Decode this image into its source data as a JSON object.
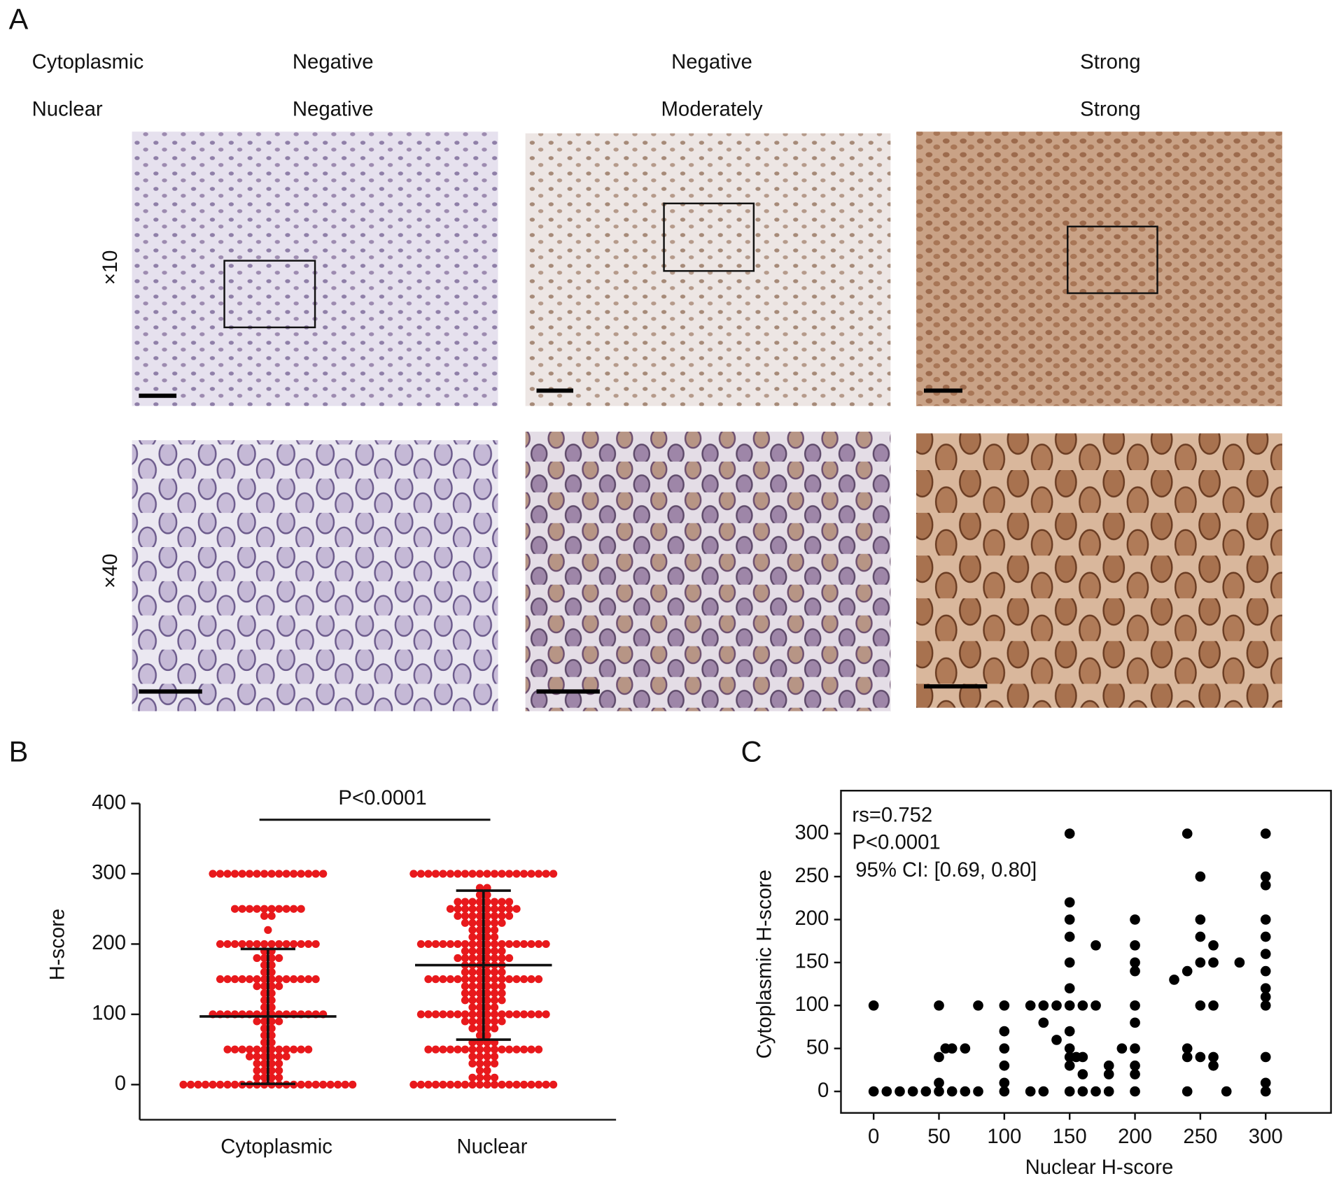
{
  "panel_a": {
    "label": "A",
    "row_labels": [
      "Cytoplasmic",
      "Nuclear"
    ],
    "columns": [
      {
        "cytoplasmic": "Negative",
        "nuclear": "Negative"
      },
      {
        "cytoplasmic": "Negative",
        "nuclear": "Moderately"
      },
      {
        "cytoplasmic": "Strong",
        "nuclear": "Strong"
      }
    ],
    "magnifications": [
      "×10",
      "×40"
    ]
  },
  "chart_data": [
    {
      "type": "strip",
      "label": "B",
      "annotation": "P<0.0001",
      "ylabel": "H-score",
      "categories": [
        "Cytoplasmic",
        "Nuclear"
      ],
      "color": "#e8191c",
      "values": [
        [
          0,
          0,
          0,
          0,
          0,
          0,
          0,
          0,
          0,
          0,
          0,
          0,
          0,
          0,
          0,
          0,
          0,
          0,
          0,
          0,
          0,
          0,
          0,
          0,
          10,
          10,
          10,
          10,
          20,
          20,
          20,
          20,
          30,
          30,
          30,
          30,
          40,
          40,
          40,
          40,
          40,
          40,
          50,
          50,
          50,
          50,
          50,
          50,
          50,
          50,
          50,
          50,
          50,
          50,
          60,
          60,
          70,
          70,
          80,
          80,
          90,
          90,
          90,
          90,
          100,
          100,
          100,
          100,
          100,
          100,
          100,
          100,
          100,
          100,
          100,
          100,
          100,
          100,
          100,
          100,
          110,
          110,
          120,
          120,
          130,
          130,
          140,
          140,
          140,
          140,
          150,
          150,
          150,
          150,
          150,
          150,
          150,
          150,
          150,
          150,
          150,
          150,
          150,
          150,
          160,
          160,
          170,
          170,
          180,
          180,
          180,
          180,
          190,
          190,
          200,
          200,
          200,
          200,
          200,
          200,
          200,
          200,
          200,
          200,
          200,
          200,
          200,
          200,
          220,
          240,
          240,
          250,
          250,
          250,
          250,
          250,
          250,
          250,
          250,
          250,
          250,
          300,
          300,
          300,
          300,
          300,
          300,
          300,
          300,
          300,
          300,
          300,
          300,
          300,
          300,
          300,
          300
        ],
        [
          0,
          0,
          0,
          0,
          0,
          0,
          0,
          0,
          0,
          0,
          0,
          0,
          0,
          0,
          0,
          0,
          0,
          0,
          0,
          0,
          10,
          10,
          10,
          10,
          20,
          20,
          30,
          30,
          30,
          30,
          40,
          40,
          40,
          40,
          50,
          50,
          50,
          50,
          50,
          50,
          50,
          50,
          50,
          50,
          50,
          50,
          50,
          50,
          50,
          50,
          60,
          60,
          60,
          60,
          70,
          70,
          80,
          80,
          80,
          80,
          90,
          90,
          90,
          90,
          90,
          90,
          100,
          100,
          100,
          100,
          100,
          100,
          100,
          100,
          100,
          100,
          100,
          100,
          100,
          100,
          100,
          100,
          100,
          100,
          110,
          110,
          110,
          110,
          120,
          120,
          120,
          120,
          120,
          120,
          130,
          130,
          130,
          130,
          130,
          130,
          140,
          140,
          140,
          140,
          140,
          140,
          150,
          150,
          150,
          150,
          150,
          150,
          150,
          150,
          150,
          150,
          150,
          150,
          150,
          150,
          150,
          150,
          160,
          160,
          160,
          160,
          160,
          160,
          170,
          170,
          170,
          170,
          170,
          170,
          180,
          180,
          180,
          180,
          180,
          180,
          180,
          180,
          190,
          190,
          190,
          190,
          190,
          190,
          200,
          200,
          200,
          200,
          200,
          200,
          200,
          200,
          200,
          200,
          200,
          200,
          200,
          200,
          200,
          200,
          200,
          200,
          210,
          210,
          210,
          210,
          220,
          220,
          220,
          220,
          230,
          230,
          230,
          230,
          230,
          230,
          240,
          240,
          240,
          240,
          240,
          240,
          240,
          240,
          250,
          250,
          250,
          250,
          250,
          250,
          250,
          250,
          250,
          250,
          260,
          260,
          260,
          260,
          260,
          260,
          260,
          260,
          270,
          270,
          280,
          280,
          300,
          300,
          300,
          300,
          300,
          300,
          300,
          300,
          300,
          300,
          300,
          300,
          300,
          300,
          300,
          300,
          300,
          300,
          300,
          300
        ]
      ],
      "means": [
        97,
        170
      ],
      "sds": [
        96,
        106
      ],
      "ylim": [
        -50,
        400
      ],
      "yticks": [
        0,
        100,
        200,
        300,
        400
      ]
    },
    {
      "type": "scatter",
      "label": "C",
      "xlabel": "Nuclear H-score",
      "ylabel": "Cytoplasmic H-score",
      "annotations": [
        "rs=0.752",
        "P<0.0001",
        "95% CI: [0.69, 0.80]"
      ],
      "color": "#000000",
      "x": [
        0,
        0,
        10,
        20,
        30,
        40,
        50,
        50,
        50,
        50,
        55,
        60,
        60,
        70,
        70,
        80,
        80,
        100,
        100,
        100,
        100,
        100,
        100,
        120,
        120,
        130,
        130,
        130,
        140,
        140,
        150,
        150,
        150,
        150,
        150,
        150,
        150,
        150,
        150,
        150,
        150,
        150,
        155,
        160,
        160,
        160,
        160,
        170,
        170,
        170,
        180,
        180,
        180,
        190,
        200,
        200,
        200,
        200,
        200,
        200,
        200,
        200,
        200,
        200,
        230,
        240,
        240,
        240,
        240,
        240,
        250,
        250,
        250,
        250,
        250,
        250,
        260,
        260,
        260,
        260,
        260,
        270,
        280,
        300,
        300,
        300,
        300,
        300,
        300,
        300,
        300,
        300,
        300,
        300,
        300,
        300
      ],
      "y": [
        100,
        0,
        0,
        0,
        0,
        0,
        0,
        10,
        40,
        100,
        50,
        0,
        50,
        50,
        0,
        0,
        100,
        0,
        10,
        30,
        50,
        70,
        100,
        0,
        100,
        0,
        80,
        100,
        60,
        100,
        0,
        30,
        40,
        50,
        70,
        100,
        120,
        150,
        180,
        200,
        220,
        300,
        40,
        0,
        20,
        40,
        100,
        0,
        100,
        170,
        0,
        20,
        30,
        50,
        0,
        20,
        30,
        50,
        80,
        100,
        140,
        150,
        170,
        200,
        130,
        0,
        40,
        50,
        140,
        300,
        40,
        100,
        150,
        180,
        200,
        250,
        30,
        40,
        100,
        150,
        170,
        0,
        150,
        0,
        10,
        40,
        100,
        110,
        120,
        140,
        160,
        180,
        200,
        240,
        250,
        300
      ],
      "xlim": [
        -25,
        350
      ],
      "ylim": [
        -25,
        350
      ],
      "xticks": [
        0,
        50,
        100,
        150,
        200,
        250,
        300
      ],
      "yticks": [
        0,
        50,
        100,
        150,
        200,
        250,
        300
      ]
    }
  ]
}
